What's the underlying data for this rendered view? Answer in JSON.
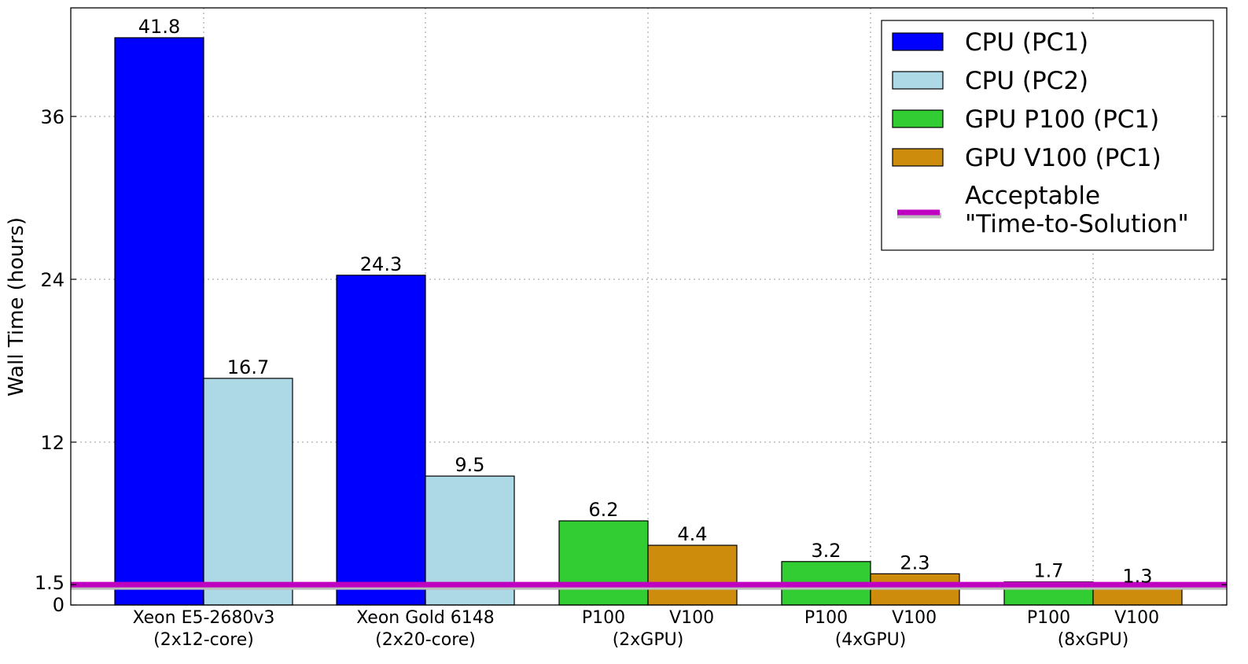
{
  "chart_data": {
    "type": "bar",
    "ylabel": "Wall Time (hours)",
    "ylim": [
      0,
      44
    ],
    "yticks": [
      0,
      1.5,
      12,
      24,
      36
    ],
    "ytick_labels": [
      "0",
      "1.5",
      "12",
      "24",
      "36"
    ],
    "grid": true,
    "legend_position": "top-right",
    "groups": [
      {
        "label": "Xeon E5-2680v3\n(2x12-core)",
        "bars": [
          {
            "series": "CPU (PC1)",
            "value": 41.8,
            "label": "41.8"
          },
          {
            "series": "CPU (PC2)",
            "value": 16.7,
            "label": "16.7"
          }
        ]
      },
      {
        "label": "Xeon Gold 6148\n(2x20-core)",
        "bars": [
          {
            "series": "CPU (PC1)",
            "value": 24.3,
            "label": "24.3"
          },
          {
            "series": "CPU (PC2)",
            "value": 9.5,
            "label": "9.5"
          }
        ]
      },
      {
        "label": "P100        V100\n(2xGPU)",
        "bars": [
          {
            "series": "GPU P100 (PC1)",
            "value": 6.2,
            "label": "6.2"
          },
          {
            "series": "GPU V100 (PC1)",
            "value": 4.4,
            "label": "4.4"
          }
        ]
      },
      {
        "label": "P100        V100\n(4xGPU)",
        "bars": [
          {
            "series": "GPU P100 (PC1)",
            "value": 3.2,
            "label": "3.2"
          },
          {
            "series": "GPU V100 (PC1)",
            "value": 2.3,
            "label": "2.3"
          }
        ]
      },
      {
        "label": "P100        V100\n(8xGPU)",
        "bars": [
          {
            "series": "GPU P100 (PC1)",
            "value": 1.7,
            "label": "1.7"
          },
          {
            "series": "GPU V100 (PC1)",
            "value": 1.3,
            "label": "1.3"
          }
        ]
      }
    ],
    "series": [
      {
        "name": "CPU (PC1)",
        "color": "#0000ff"
      },
      {
        "name": "CPU (PC2)",
        "color": "#add8e6"
      },
      {
        "name": "GPU P100 (PC1)",
        "color": "#32cd32"
      },
      {
        "name": "GPU V100 (PC1)",
        "color": "#cd8c0c"
      }
    ],
    "reference_line": {
      "name": "Acceptable\n\"Time-to-Solution\"",
      "value": 1.5,
      "color": "#c000c0"
    }
  }
}
